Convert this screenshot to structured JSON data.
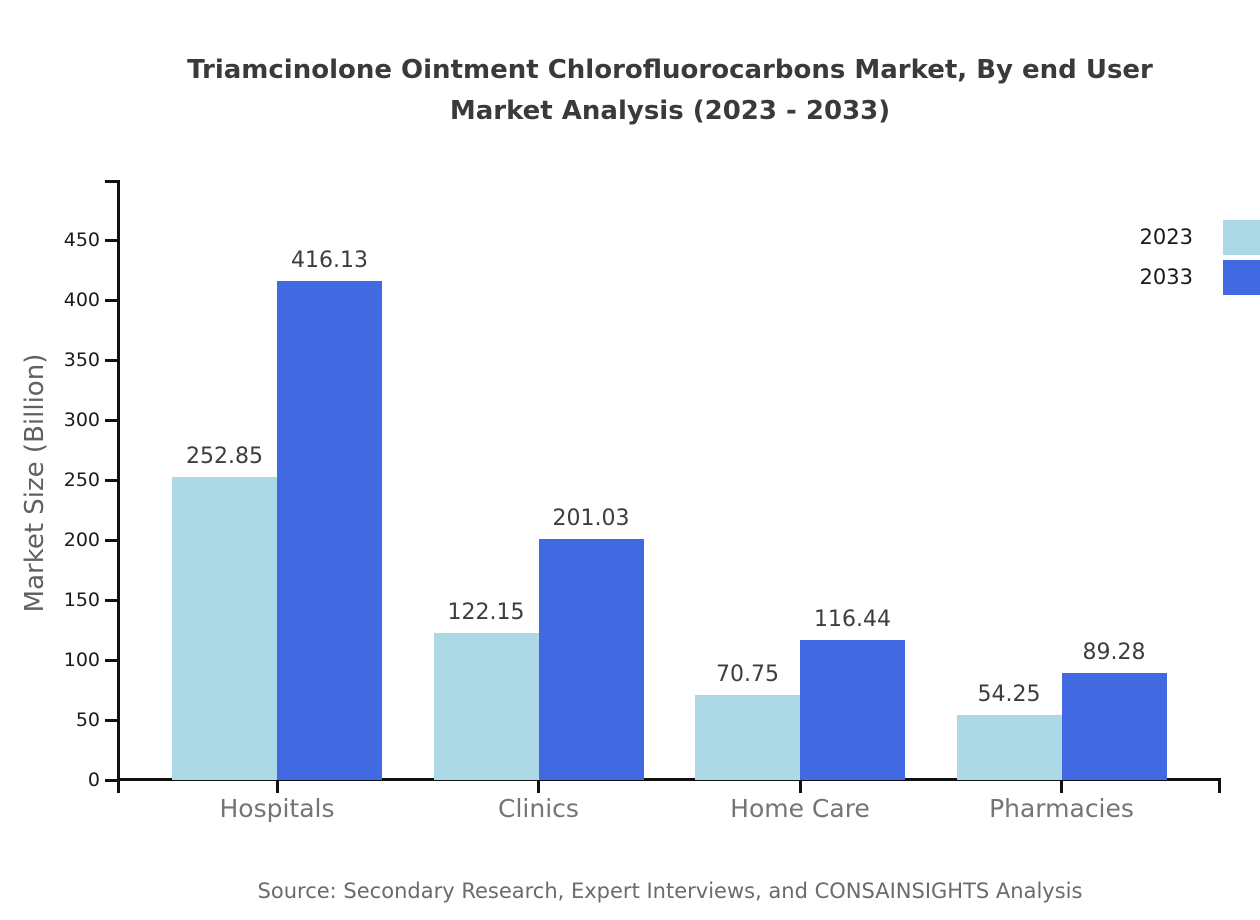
{
  "chart_data": {
    "type": "bar",
    "title": "Triamcinolone Ointment Chlorofluorocarbons Market, By end User Market Analysis (2023 - 2033)",
    "title_lines": [
      "Triamcinolone Ointment Chlorofluorocarbons Market, By end User",
      "Market Analysis (2023 - 2033)"
    ],
    "categories": [
      "Hospitals",
      "Clinics",
      "Home Care",
      "Pharmacies"
    ],
    "series": [
      {
        "name": "2023",
        "color": "#ADD8E6",
        "values": [
          252.85,
          122.15,
          70.75,
          54.25
        ]
      },
      {
        "name": "2033",
        "color": "#4169E1",
        "values": [
          416.13,
          201.03,
          116.44,
          89.28
        ]
      }
    ],
    "xlabel": "",
    "ylabel": "Market Size (Billion)",
    "ylim": [
      0,
      500
    ],
    "yticks": [
      0,
      50,
      100,
      150,
      200,
      250,
      300,
      350,
      400,
      450
    ],
    "value_labels": true,
    "value_label_decimals": 2,
    "grid": false,
    "legend_position": "top-right",
    "source_note": "Source: Secondary Research, Expert Interviews, and CONSAINSIGHTS Analysis"
  },
  "colors": {
    "background": "#ffffff",
    "axis": "#111111",
    "title_text": "#3a3a3a",
    "tick_text": "#1a1a1a",
    "category_text": "#757575",
    "ylabel_text": "#616161",
    "source_text": "#6b6b6b",
    "series_2023": "#ADD8E6",
    "series_2033": "#4169E1"
  }
}
